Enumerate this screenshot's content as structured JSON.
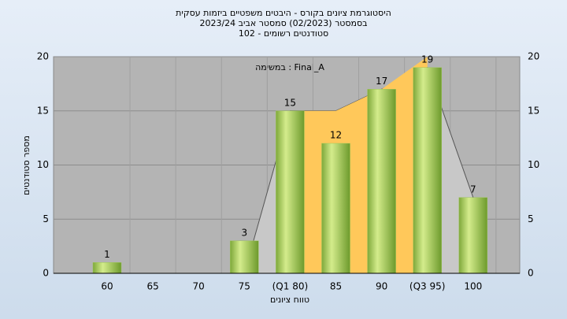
{
  "chart_data": {
    "type": "bar",
    "title_lines": [
      "היסטוגרמת ציונים בקורס - היבטים משפטיים ביזמות עסקית",
      "בסמסטר  (02/2023)  סמסטר אביב 2023/24",
      "סטודנטים רשומים - 102"
    ],
    "annotation": "במשימה : Final_A",
    "x_label": "טווח ציונים",
    "y_label": "מספר סטודנטים",
    "categories": [
      "60",
      "65",
      "70",
      "75",
      "(Q1 80)",
      "85",
      "90",
      "(Q3 95)",
      "100"
    ],
    "values": [
      1,
      0,
      0,
      3,
      15,
      12,
      17,
      19,
      7
    ],
    "color": "#9dc55a",
    "areas": [
      {
        "color": "#c8c8c8",
        "values": [
          null,
          null,
          null,
          0,
          15,
          15,
          17,
          19,
          7
        ]
      },
      {
        "color": "#ffc85a",
        "values": [
          null,
          null,
          null,
          null,
          15,
          15,
          17,
          20,
          null
        ]
      }
    ],
    "ylim": [
      0,
      20
    ],
    "yticks": [
      0,
      5,
      10,
      15,
      20
    ],
    "y2lim": [
      0,
      20
    ],
    "y2ticks": [
      0,
      5,
      10,
      15,
      20
    ],
    "grid": true
  }
}
